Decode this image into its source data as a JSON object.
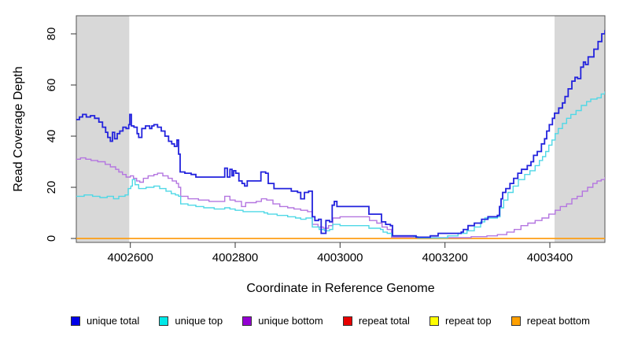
{
  "figure_title": "",
  "chart_data": {
    "type": "line",
    "step": true,
    "grid": false,
    "title": "",
    "xlabel": "Coordinate in Reference Genome",
    "ylabel": "Read Coverage Depth",
    "xlim": [
      4002497,
      4003505
    ],
    "ylim": [
      -1.54,
      87.08
    ],
    "x_ticks": [
      4002600,
      4002800,
      4003000,
      4003200,
      4003400
    ],
    "y_ticks": [
      0,
      20,
      40,
      60,
      80
    ],
    "legend_position": "bottom",
    "shaded_regions": [
      {
        "x0": 4002497,
        "x1": 4002598,
        "color": "#d8d8d8"
      },
      {
        "x0": 4003409,
        "x1": 4003505,
        "color": "#d8d8d8"
      }
    ],
    "series": [
      {
        "name": "unique total",
        "legend_color": "#0000e8",
        "line_color": "#2222dd",
        "line_width": 1.8,
        "points": [
          [
            4002497,
            46.5
          ],
          [
            4002503,
            47.5
          ],
          [
            4002509,
            48.5
          ],
          [
            4002516,
            47.5
          ],
          [
            4002524,
            48
          ],
          [
            4002532,
            47
          ],
          [
            4002540,
            45.5
          ],
          [
            4002547,
            43.5
          ],
          [
            4002553,
            41.5
          ],
          [
            4002557,
            39.5
          ],
          [
            4002562,
            38
          ],
          [
            4002566,
            41.5
          ],
          [
            4002570,
            39
          ],
          [
            4002575,
            41
          ],
          [
            4002580,
            42
          ],
          [
            4002586,
            43.5
          ],
          [
            4002592,
            43
          ],
          [
            4002597,
            44.5
          ],
          [
            4002599,
            48.5
          ],
          [
            4002602,
            44
          ],
          [
            4002607,
            43.5
          ],
          [
            4002613,
            41
          ],
          [
            4002616,
            39.5
          ],
          [
            4002622,
            43
          ],
          [
            4002629,
            44
          ],
          [
            4002637,
            43
          ],
          [
            4002641,
            44
          ],
          [
            4002645,
            44.5
          ],
          [
            4002652,
            43.5
          ],
          [
            4002659,
            42
          ],
          [
            4002666,
            40
          ],
          [
            4002673,
            38
          ],
          [
            4002679,
            37
          ],
          [
            4002684,
            36
          ],
          [
            4002689,
            38.5
          ],
          [
            4002692,
            33
          ],
          [
            4002695,
            26
          ],
          [
            4002704,
            25.5
          ],
          [
            4002716,
            25
          ],
          [
            4002725,
            24
          ],
          [
            4002776,
            24
          ],
          [
            4002780,
            27.5
          ],
          [
            4002785,
            24
          ],
          [
            4002790,
            27
          ],
          [
            4002794,
            24.5
          ],
          [
            4002797,
            26.5
          ],
          [
            4002801,
            25.5
          ],
          [
            4002807,
            22.5
          ],
          [
            4002813,
            21.5
          ],
          [
            4002818,
            20.5
          ],
          [
            4002823,
            22.5
          ],
          [
            4002845,
            22.5
          ],
          [
            4002849,
            26
          ],
          [
            4002858,
            25.5
          ],
          [
            4002863,
            21.5
          ],
          [
            4002874,
            19.5
          ],
          [
            4002899,
            19.5
          ],
          [
            4002907,
            18.5
          ],
          [
            4002919,
            18
          ],
          [
            4002925,
            15.5
          ],
          [
            4002932,
            18
          ],
          [
            4002940,
            18.5
          ],
          [
            4002947,
            8.5
          ],
          [
            4002952,
            7
          ],
          [
            4002959,
            7.5
          ],
          [
            4002964,
            2
          ],
          [
            4002970,
            2
          ],
          [
            4002973,
            7
          ],
          [
            4002980,
            6.5
          ],
          [
            4002985,
            13
          ],
          [
            4002989,
            14.5
          ],
          [
            4002994,
            12.5
          ],
          [
            4003051,
            12.5
          ],
          [
            4003055,
            9.5
          ],
          [
            4003076,
            9.5
          ],
          [
            4003079,
            6.5
          ],
          [
            4003087,
            5.5
          ],
          [
            4003096,
            5
          ],
          [
            4003100,
            1
          ],
          [
            4003142,
            1
          ],
          [
            4003145,
            0.5
          ],
          [
            4003169,
            0.5
          ],
          [
            4003172,
            1
          ],
          [
            4003187,
            2
          ],
          [
            4003231,
            2.5
          ],
          [
            4003235,
            3.5
          ],
          [
            4003244,
            5
          ],
          [
            4003256,
            6
          ],
          [
            4003270,
            7.5
          ],
          [
            4003282,
            8.5
          ],
          [
            4003300,
            9
          ],
          [
            4003304,
            12.5
          ],
          [
            4003307,
            15.5
          ],
          [
            4003310,
            18
          ],
          [
            4003316,
            19.5
          ],
          [
            4003324,
            21.5
          ],
          [
            4003331,
            23.5
          ],
          [
            4003339,
            25.5
          ],
          [
            4003346,
            27
          ],
          [
            4003357,
            28.5
          ],
          [
            4003364,
            30
          ],
          [
            4003369,
            32.5
          ],
          [
            4003376,
            34
          ],
          [
            4003384,
            37
          ],
          [
            4003390,
            39
          ],
          [
            4003394,
            42
          ],
          [
            4003399,
            44.5
          ],
          [
            4003405,
            47
          ],
          [
            4003409,
            49
          ],
          [
            4003417,
            51
          ],
          [
            4003424,
            53
          ],
          [
            4003429,
            55.5
          ],
          [
            4003435,
            58.5
          ],
          [
            4003442,
            61.5
          ],
          [
            4003448,
            63
          ],
          [
            4003453,
            62.5
          ],
          [
            4003459,
            67
          ],
          [
            4003464,
            69
          ],
          [
            4003468,
            68
          ],
          [
            4003473,
            71
          ],
          [
            4003484,
            74
          ],
          [
            4003492,
            77
          ],
          [
            4003499,
            80
          ],
          [
            4003505,
            81.5
          ]
        ]
      },
      {
        "name": "unique top",
        "legend_color": "#00e8e8",
        "line_color": "#4fd8e6",
        "line_width": 1.4,
        "points": [
          [
            4002497,
            16.5
          ],
          [
            4002512,
            17
          ],
          [
            4002528,
            16.5
          ],
          [
            4002542,
            16
          ],
          [
            4002556,
            16.5
          ],
          [
            4002568,
            15.5
          ],
          [
            4002578,
            16.5
          ],
          [
            4002590,
            17
          ],
          [
            4002596,
            19.5
          ],
          [
            4002601,
            20.5
          ],
          [
            4002604,
            23
          ],
          [
            4002609,
            21
          ],
          [
            4002616,
            19.5
          ],
          [
            4002630,
            20
          ],
          [
            4002645,
            20.5
          ],
          [
            4002656,
            19.5
          ],
          [
            4002668,
            18.5
          ],
          [
            4002678,
            17.5
          ],
          [
            4002686,
            17
          ],
          [
            4002692,
            16.5
          ],
          [
            4002696,
            13.5
          ],
          [
            4002710,
            13
          ],
          [
            4002725,
            12.5
          ],
          [
            4002740,
            12
          ],
          [
            4002760,
            11.5
          ],
          [
            4002780,
            12
          ],
          [
            4002790,
            11.5
          ],
          [
            4002800,
            11
          ],
          [
            4002815,
            10.5
          ],
          [
            4002835,
            10.5
          ],
          [
            4002855,
            10
          ],
          [
            4002862,
            9.5
          ],
          [
            4002880,
            9
          ],
          [
            4002900,
            8.5
          ],
          [
            4002915,
            8
          ],
          [
            4002925,
            7.5
          ],
          [
            4002935,
            8
          ],
          [
            4002947,
            4.5
          ],
          [
            4002960,
            3.5
          ],
          [
            4002970,
            3
          ],
          [
            4002980,
            3.5
          ],
          [
            4002986,
            5.5
          ],
          [
            4003000,
            5
          ],
          [
            4003048,
            5
          ],
          [
            4003055,
            4
          ],
          [
            4003077,
            3.5
          ],
          [
            4003082,
            2.5
          ],
          [
            4003090,
            2
          ],
          [
            4003098,
            1
          ],
          [
            4003140,
            0.7
          ],
          [
            4003148,
            0.2
          ],
          [
            4003195,
            0.2
          ],
          [
            4003205,
            1
          ],
          [
            4003225,
            2
          ],
          [
            4003242,
            3
          ],
          [
            4003256,
            4.5
          ],
          [
            4003268,
            6.5
          ],
          [
            4003276,
            8
          ],
          [
            4003300,
            8.5
          ],
          [
            4003305,
            12
          ],
          [
            4003312,
            15
          ],
          [
            4003320,
            18
          ],
          [
            4003330,
            20.5
          ],
          [
            4003340,
            23
          ],
          [
            4003352,
            25
          ],
          [
            4003362,
            26.5
          ],
          [
            4003372,
            28.5
          ],
          [
            4003380,
            30.5
          ],
          [
            4003386,
            32
          ],
          [
            4003392,
            34
          ],
          [
            4003398,
            36.5
          ],
          [
            4003404,
            38.5
          ],
          [
            4003410,
            41
          ],
          [
            4003416,
            43
          ],
          [
            4003424,
            45
          ],
          [
            4003432,
            47
          ],
          [
            4003440,
            48.5
          ],
          [
            4003450,
            50
          ],
          [
            4003460,
            52
          ],
          [
            4003470,
            53.5
          ],
          [
            4003478,
            54.5
          ],
          [
            4003490,
            55
          ],
          [
            4003498,
            56.5
          ],
          [
            4003505,
            57.5
          ]
        ]
      },
      {
        "name": "unique bottom",
        "legend_color": "#9400d3",
        "line_color": "#b476e0",
        "line_width": 1.4,
        "points": [
          [
            4002497,
            31
          ],
          [
            4002505,
            31.5
          ],
          [
            4002515,
            31
          ],
          [
            4002525,
            30.5
          ],
          [
            4002538,
            30
          ],
          [
            4002552,
            29
          ],
          [
            4002562,
            28
          ],
          [
            4002572,
            27
          ],
          [
            4002578,
            26
          ],
          [
            4002585,
            25
          ],
          [
            4002592,
            24
          ],
          [
            4002600,
            24.5
          ],
          [
            4002606,
            23.5
          ],
          [
            4002612,
            22.5
          ],
          [
            4002618,
            22
          ],
          [
            4002625,
            23.5
          ],
          [
            4002634,
            24.5
          ],
          [
            4002645,
            25
          ],
          [
            4002652,
            25.5
          ],
          [
            4002662,
            24.5
          ],
          [
            4002672,
            23.5
          ],
          [
            4002680,
            22.5
          ],
          [
            4002688,
            21.5
          ],
          [
            4002692,
            20
          ],
          [
            4002696,
            16.5
          ],
          [
            4002710,
            15.5
          ],
          [
            4002730,
            15
          ],
          [
            4002750,
            14.5
          ],
          [
            4002765,
            14.5
          ],
          [
            4002780,
            16.5
          ],
          [
            4002790,
            15
          ],
          [
            4002800,
            14.5
          ],
          [
            4002812,
            12.5
          ],
          [
            4002820,
            14
          ],
          [
            4002840,
            14.5
          ],
          [
            4002850,
            15.5
          ],
          [
            4002860,
            15
          ],
          [
            4002872,
            13.5
          ],
          [
            4002885,
            12.5
          ],
          [
            4002900,
            12
          ],
          [
            4002912,
            11.5
          ],
          [
            4002925,
            11
          ],
          [
            4002938,
            10.5
          ],
          [
            4002947,
            5.5
          ],
          [
            4002958,
            4.5
          ],
          [
            4002968,
            4
          ],
          [
            4002978,
            5
          ],
          [
            4002986,
            8
          ],
          [
            4003000,
            8.5
          ],
          [
            4003048,
            8.5
          ],
          [
            4003056,
            7
          ],
          [
            4003070,
            6
          ],
          [
            4003080,
            4.5
          ],
          [
            4003090,
            3.5
          ],
          [
            4003098,
            0.5
          ],
          [
            4003130,
            0.5
          ],
          [
            4003160,
            0.3
          ],
          [
            4003230,
            0.3
          ],
          [
            4003250,
            0.7
          ],
          [
            4003280,
            1
          ],
          [
            4003300,
            1.5
          ],
          [
            4003318,
            2.5
          ],
          [
            4003332,
            3.5
          ],
          [
            4003345,
            5
          ],
          [
            4003358,
            6
          ],
          [
            4003372,
            7
          ],
          [
            4003385,
            8
          ],
          [
            4003398,
            9.5
          ],
          [
            4003410,
            11
          ],
          [
            4003420,
            12.5
          ],
          [
            4003432,
            13.5
          ],
          [
            4003442,
            15.5
          ],
          [
            4003452,
            16.5
          ],
          [
            4003462,
            18.5
          ],
          [
            4003472,
            20
          ],
          [
            4003482,
            21.5
          ],
          [
            4003490,
            22.5
          ],
          [
            4003498,
            23
          ],
          [
            4003505,
            24
          ]
        ]
      },
      {
        "name": "repeat total",
        "legend_color": "#e80000",
        "line_color": "#dd0000",
        "line_width": 1.2,
        "points": [
          [
            4002497,
            0
          ],
          [
            4003505,
            0
          ]
        ]
      },
      {
        "name": "repeat top",
        "legend_color": "#ffff00",
        "line_color": "#ffee00",
        "line_width": 1.2,
        "points": [
          [
            4002497,
            0
          ],
          [
            4003505,
            0
          ]
        ]
      },
      {
        "name": "repeat bottom",
        "legend_color": "#ffa000",
        "line_color": "#ffa013",
        "line_width": 1.6,
        "points": [
          [
            4002497,
            0
          ],
          [
            4003505,
            0
          ]
        ]
      }
    ]
  }
}
